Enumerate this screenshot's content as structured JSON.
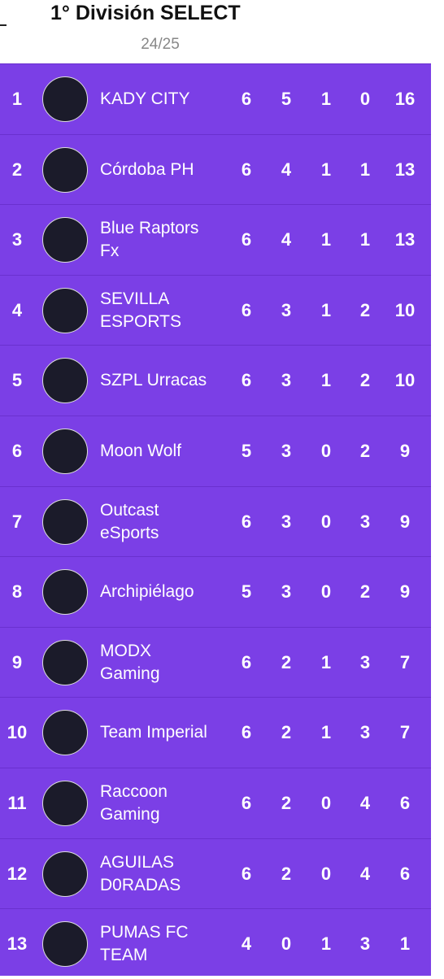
{
  "header": {
    "title": "1° División SELECT",
    "season": "24/25"
  },
  "table": {
    "rows": [
      {
        "pos": 1,
        "team": [
          "KADY CITY"
        ],
        "played": 6,
        "won": 5,
        "drawn": 1,
        "lost": 0,
        "points": 16
      },
      {
        "pos": 2,
        "team": [
          "Córdoba PH"
        ],
        "played": 6,
        "won": 4,
        "drawn": 1,
        "lost": 1,
        "points": 13
      },
      {
        "pos": 3,
        "team": [
          "Blue Raptors",
          "Fx"
        ],
        "played": 6,
        "won": 4,
        "drawn": 1,
        "lost": 1,
        "points": 13
      },
      {
        "pos": 4,
        "team": [
          "SEVILLA",
          "ESPORTS"
        ],
        "played": 6,
        "won": 3,
        "drawn": 1,
        "lost": 2,
        "points": 10
      },
      {
        "pos": 5,
        "team": [
          "SZPL Urracas"
        ],
        "played": 6,
        "won": 3,
        "drawn": 1,
        "lost": 2,
        "points": 10
      },
      {
        "pos": 6,
        "team": [
          "Moon Wolf"
        ],
        "played": 5,
        "won": 3,
        "drawn": 0,
        "lost": 2,
        "points": 9
      },
      {
        "pos": 7,
        "team": [
          "Outcast",
          "eSports"
        ],
        "played": 6,
        "won": 3,
        "drawn": 0,
        "lost": 3,
        "points": 9
      },
      {
        "pos": 8,
        "team": [
          "Archipiélago"
        ],
        "played": 5,
        "won": 3,
        "drawn": 0,
        "lost": 2,
        "points": 9
      },
      {
        "pos": 9,
        "team": [
          "MODX",
          "Gaming"
        ],
        "played": 6,
        "won": 2,
        "drawn": 1,
        "lost": 3,
        "points": 7
      },
      {
        "pos": 10,
        "team": [
          "Team Imperial"
        ],
        "played": 6,
        "won": 2,
        "drawn": 1,
        "lost": 3,
        "points": 7
      },
      {
        "pos": 11,
        "team": [
          "Raccoon",
          "Gaming"
        ],
        "played": 6,
        "won": 2,
        "drawn": 0,
        "lost": 4,
        "points": 6
      },
      {
        "pos": 12,
        "team": [
          "AGUILAS",
          "D0RADAS"
        ],
        "played": 6,
        "won": 2,
        "drawn": 0,
        "lost": 4,
        "points": 6
      },
      {
        "pos": 13,
        "team": [
          "PUMAS FC",
          "TEAM"
        ],
        "played": 4,
        "won": 0,
        "drawn": 1,
        "lost": 3,
        "points": 1
      }
    ]
  }
}
